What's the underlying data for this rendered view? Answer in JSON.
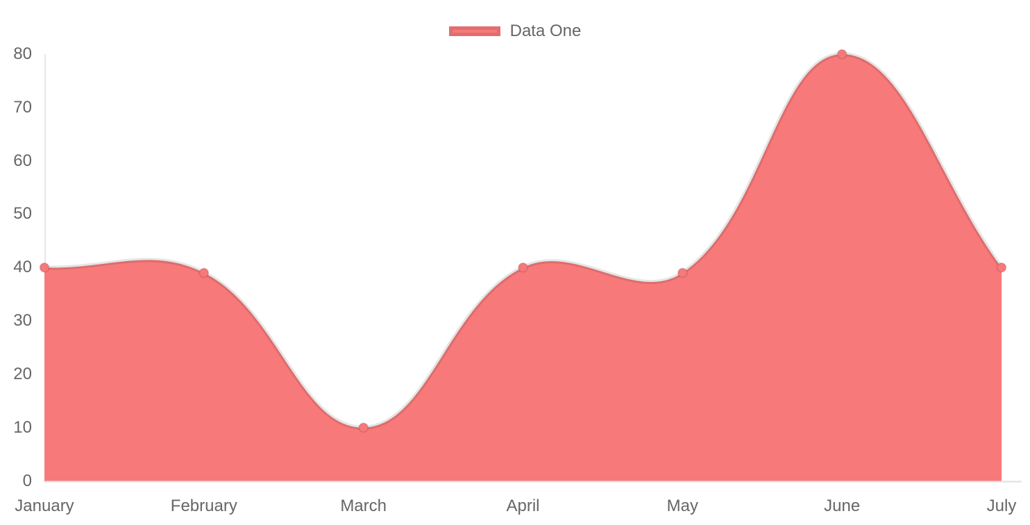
{
  "chart_data": {
    "type": "area",
    "title": "",
    "categories": [
      "January",
      "February",
      "March",
      "April",
      "May",
      "June",
      "July"
    ],
    "series": [
      {
        "name": "Data One",
        "values": [
          40,
          39,
          10,
          40,
          39,
          80,
          40
        ],
        "fill_color": "#f87979",
        "line_color": "rgba(0,0,0,0.1)",
        "point_fill_color": "#f87979",
        "point_border_color": "rgba(0,0,0,0.1)"
      }
    ],
    "xlabel": "",
    "ylabel": "",
    "ylim": [
      0,
      80
    ],
    "y_ticks": [
      0,
      10,
      20,
      30,
      40,
      50,
      60,
      70,
      80
    ],
    "grid": false,
    "legend_position": "top",
    "line_tension": 0.4
  },
  "colors": {
    "axis_line": "rgba(0,0,0,0.1)",
    "tick_text": "#666666",
    "legend_text": "#666666",
    "background": "#ffffff"
  }
}
